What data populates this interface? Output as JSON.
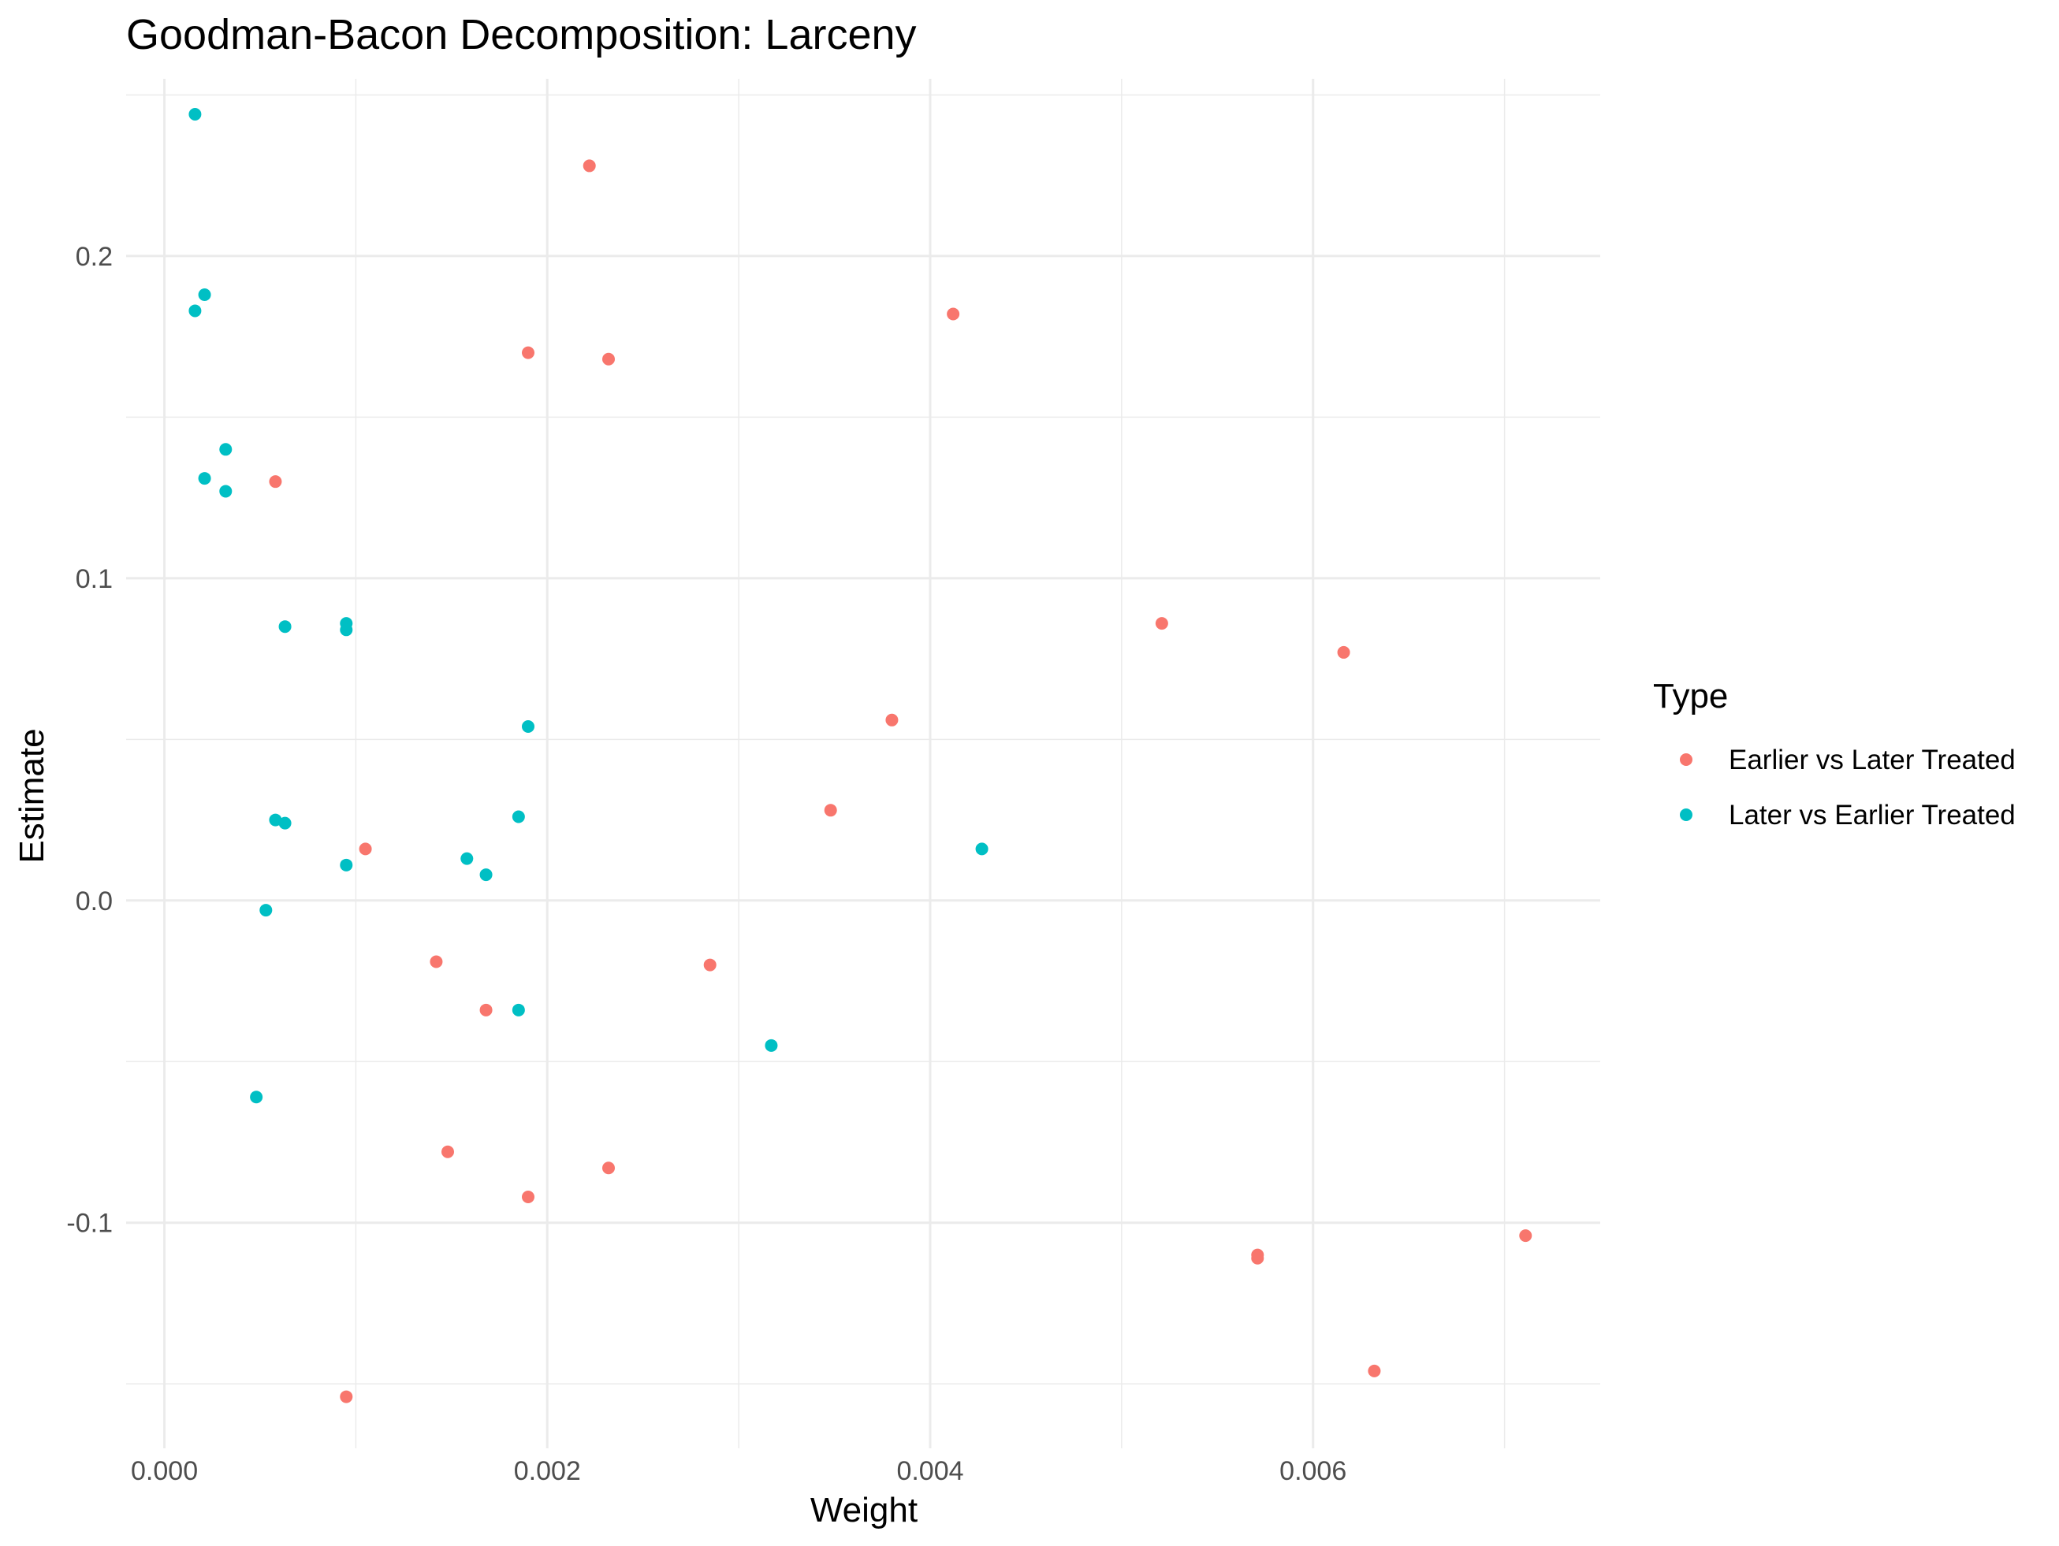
{
  "chart_data": {
    "type": "scatter",
    "title": "Goodman-Bacon Decomposition: Larceny",
    "xlabel": "Weight",
    "ylabel": "Estimate",
    "xlim": [
      -0.0002,
      0.0075
    ],
    "ylim": [
      -0.17,
      0.255
    ],
    "x_ticks": [
      0.0,
      0.002,
      0.004,
      0.006
    ],
    "x_tick_labels": [
      "0.000",
      "0.002",
      "0.004",
      "0.006"
    ],
    "y_ticks": [
      -0.1,
      0.0,
      0.1,
      0.2
    ],
    "y_tick_labels": [
      "-0.1",
      "0.0",
      "0.1",
      "0.2"
    ],
    "grid": true,
    "legend": {
      "title": "Type",
      "position": "right"
    },
    "series": [
      {
        "name": "Earlier vs Later Treated",
        "color": "#F8766D",
        "points": [
          [
            0.00222,
            0.228
          ],
          [
            0.0019,
            0.17
          ],
          [
            0.00232,
            0.168
          ],
          [
            0.00412,
            0.182
          ],
          [
            0.00058,
            0.13
          ],
          [
            0.00521,
            0.086
          ],
          [
            0.00616,
            0.077
          ],
          [
            0.0038,
            0.056
          ],
          [
            0.00348,
            0.028
          ],
          [
            0.00105,
            0.016
          ],
          [
            0.00142,
            -0.019
          ],
          [
            0.00285,
            -0.02
          ],
          [
            0.00168,
            -0.034
          ],
          [
            0.00148,
            -0.078
          ],
          [
            0.00232,
            -0.083
          ],
          [
            0.0019,
            -0.092
          ],
          [
            0.00571,
            -0.11
          ],
          [
            0.00571,
            -0.111
          ],
          [
            0.00711,
            -0.104
          ],
          [
            0.00632,
            -0.146
          ],
          [
            0.00095,
            -0.154
          ]
        ]
      },
      {
        "name": "Later vs Earlier Treated",
        "color": "#00BFC4",
        "points": [
          [
            0.00016,
            0.244
          ],
          [
            0.00021,
            0.188
          ],
          [
            0.00016,
            0.183
          ],
          [
            0.00032,
            0.14
          ],
          [
            0.00021,
            0.131
          ],
          [
            0.00032,
            0.127
          ],
          [
            0.00063,
            0.085
          ],
          [
            0.00095,
            0.086
          ],
          [
            0.00095,
            0.084
          ],
          [
            0.0019,
            0.054
          ],
          [
            0.00058,
            0.025
          ],
          [
            0.00063,
            0.024
          ],
          [
            0.00185,
            0.026
          ],
          [
            0.00095,
            0.011
          ],
          [
            0.00158,
            0.013
          ],
          [
            0.00168,
            0.008
          ],
          [
            0.00427,
            0.016
          ],
          [
            0.00053,
            -0.003
          ],
          [
            0.00185,
            -0.034
          ],
          [
            0.00317,
            -0.045
          ],
          [
            0.00048,
            -0.061
          ]
        ]
      }
    ]
  }
}
